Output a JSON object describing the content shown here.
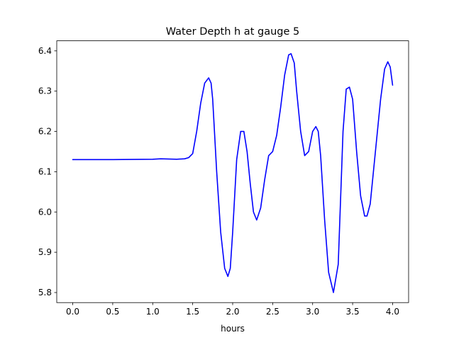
{
  "chart_data": {
    "type": "line",
    "title": "Water Depth h at gauge 5",
    "xlabel": "hours",
    "ylabel": "",
    "xlim": [
      -0.2,
      4.2
    ],
    "ylim": [
      5.775,
      6.425
    ],
    "xticks": [
      0.0,
      0.5,
      1.0,
      1.5,
      2.0,
      2.5,
      3.0,
      3.5,
      4.0
    ],
    "xtick_labels": [
      "0.0",
      "0.5",
      "1.0",
      "1.5",
      "2.0",
      "2.5",
      "3.0",
      "3.5",
      "4.0"
    ],
    "yticks": [
      5.8,
      5.9,
      6.0,
      6.1,
      6.2,
      6.3,
      6.4
    ],
    "ytick_labels": [
      "5.8",
      "5.9",
      "6.0",
      "6.1",
      "6.2",
      "6.3",
      "6.4"
    ],
    "grid": false,
    "colors": {
      "line": "#0000ff",
      "axes": "#000000",
      "background": "#ffffff"
    },
    "series": [
      {
        "x": [
          0.0,
          0.5,
          1.0,
          1.1,
          1.3,
          1.4,
          1.45,
          1.5,
          1.55,
          1.6,
          1.65,
          1.7,
          1.73,
          1.75,
          1.8,
          1.85,
          1.9,
          1.94,
          1.97,
          2.0,
          2.05,
          2.1,
          2.14,
          2.18,
          2.22,
          2.26,
          2.3,
          2.35,
          2.4,
          2.45,
          2.5,
          2.55,
          2.6,
          2.65,
          2.7,
          2.73,
          2.77,
          2.8,
          2.85,
          2.9,
          2.95,
          3.0,
          3.04,
          3.07,
          3.1,
          3.15,
          3.2,
          3.26,
          3.32,
          3.38,
          3.42,
          3.46,
          3.5,
          3.55,
          3.6,
          3.65,
          3.68,
          3.72,
          3.76,
          3.8,
          3.85,
          3.9,
          3.94,
          3.97,
          4.0
        ],
        "y": [
          6.13,
          6.13,
          6.131,
          6.132,
          6.131,
          6.132,
          6.135,
          6.145,
          6.2,
          6.27,
          6.32,
          6.333,
          6.32,
          6.28,
          6.1,
          5.95,
          5.86,
          5.84,
          5.86,
          5.95,
          6.13,
          6.2,
          6.2,
          6.15,
          6.07,
          6.0,
          5.98,
          6.01,
          6.08,
          6.14,
          6.15,
          6.19,
          6.26,
          6.34,
          6.39,
          6.393,
          6.37,
          6.3,
          6.2,
          6.14,
          6.15,
          6.2,
          6.212,
          6.2,
          6.14,
          5.98,
          5.85,
          5.8,
          5.87,
          6.2,
          6.305,
          6.31,
          6.28,
          6.15,
          6.04,
          5.99,
          5.99,
          6.02,
          6.1,
          6.18,
          6.28,
          6.355,
          6.373,
          6.36,
          6.315
        ]
      }
    ]
  }
}
